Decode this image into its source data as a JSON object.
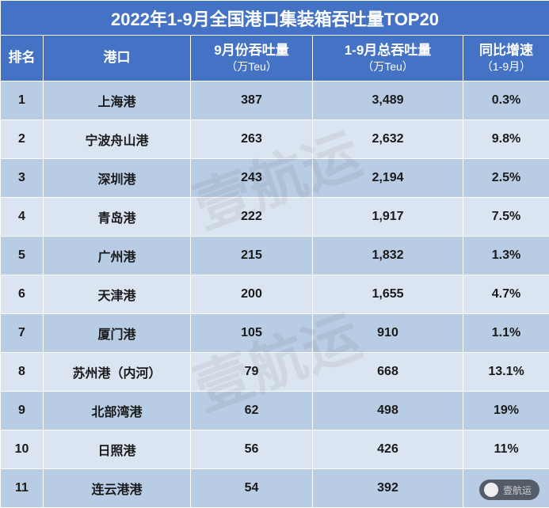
{
  "table": {
    "type": "table",
    "title": "2022年1-9月全国港口集装箱吞吐量TOP20",
    "background_color": "#ffffff",
    "header_bg": "#4472c4",
    "header_fg": "#ffffff",
    "row_odd_bg": "#b8cce4",
    "row_even_bg": "#dbe5f1",
    "border_color": "#ffffff",
    "title_fontsize": 22,
    "header_fontsize": 17,
    "cell_fontsize": 16,
    "columns": [
      {
        "key": "rank",
        "label": "排名",
        "sub": "",
        "width": 54,
        "align": "center"
      },
      {
        "key": "port",
        "label": "港口",
        "sub": "",
        "width": 186,
        "align": "center"
      },
      {
        "key": "sep",
        "label": "9月份吞吐量",
        "sub": "（万Teu）",
        "width": 154,
        "align": "center"
      },
      {
        "key": "total",
        "label": "1-9月总吞吐量",
        "sub": "（万Teu）",
        "width": 190,
        "align": "center"
      },
      {
        "key": "yoy",
        "label": "同比增速",
        "sub": "（1-9月）",
        "width": 109,
        "align": "center"
      }
    ],
    "rows": [
      {
        "rank": "1",
        "port": "上海港",
        "sep": "387",
        "total": "3,489",
        "yoy": "0.3%"
      },
      {
        "rank": "2",
        "port": "宁波舟山港",
        "sep": "263",
        "total": "2,632",
        "yoy": "9.8%"
      },
      {
        "rank": "3",
        "port": "深圳港",
        "sep": "243",
        "total": "2,194",
        "yoy": "2.5%"
      },
      {
        "rank": "4",
        "port": "青岛港",
        "sep": "222",
        "total": "1,917",
        "yoy": "7.5%"
      },
      {
        "rank": "5",
        "port": "广州港",
        "sep": "215",
        "total": "1,832",
        "yoy": "1.3%"
      },
      {
        "rank": "6",
        "port": "天津港",
        "sep": "200",
        "total": "1,655",
        "yoy": "4.7%"
      },
      {
        "rank": "7",
        "port": "厦门港",
        "sep": "105",
        "total": "910",
        "yoy": "1.1%"
      },
      {
        "rank": "8",
        "port": "苏州港（内河）",
        "sep": "79",
        "total": "668",
        "yoy": "13.1%"
      },
      {
        "rank": "9",
        "port": "北部湾港",
        "sep": "62",
        "total": "498",
        "yoy": "19%"
      },
      {
        "rank": "10",
        "port": "日照港",
        "sep": "56",
        "total": "426",
        "yoy": "11%"
      },
      {
        "rank": "11",
        "port": "连云港港",
        "sep": "54",
        "total": "392",
        "yoy": ""
      }
    ]
  },
  "watermark_text": "壹航运",
  "footer_label": "壹航运"
}
